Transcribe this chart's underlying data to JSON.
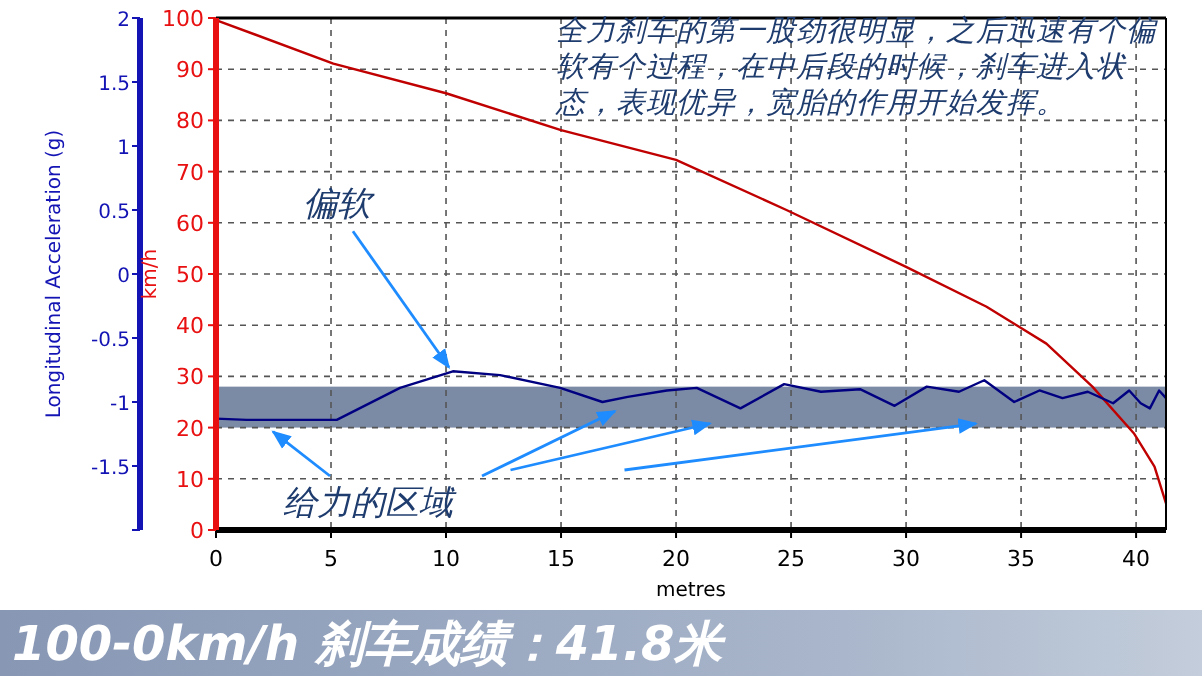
{
  "chart_data": {
    "type": "line",
    "title": "100-0km/h 刹车成绩：41.8米",
    "xlabel": "metres",
    "ylabel": "km/h",
    "y2label": "Longitudinal Acceleration (g)",
    "xlim": [
      0,
      41.3
    ],
    "xticks": [
      0,
      5,
      10,
      15,
      20,
      25,
      30,
      35,
      40
    ],
    "ylim": [
      0,
      100
    ],
    "yticks": [
      0,
      10,
      20,
      30,
      40,
      50,
      60,
      70,
      80,
      90,
      100
    ],
    "y2lim": [
      -2,
      2
    ],
    "y2ticks": [
      {
        "value": -2,
        "label": null
      },
      -1.5,
      -1,
      -0.5,
      0,
      0.5,
      1,
      1.5,
      2
    ],
    "grid": true,
    "series": [
      {
        "color": "#c00000",
        "x": [
          0,
          5.1,
          10.0,
          15.0,
          20.0,
          24.8,
          30.0,
          33.5,
          36.1,
          38.1,
          39.9,
          40.8,
          41.3
        ],
        "values": [
          99.6,
          91.1,
          85.3,
          78.1,
          72.3,
          62.5,
          51.4,
          43.6,
          36.4,
          28.0,
          18.9,
          12.4,
          5.2
        ]
      },
      {
        "color": "#000080",
        "axis": "y2",
        "x": [
          0,
          1.33,
          5.25,
          8.0,
          10.3,
          12.35,
          14.96,
          16.8,
          17.9,
          19.6,
          20.9,
          22.8,
          24.7,
          26.3,
          28.0,
          29.5,
          30.9,
          32.3,
          33.4,
          34.7,
          35.8,
          36.8,
          37.9,
          39.0,
          39.7,
          40.2,
          40.6,
          41.0,
          41.3
        ],
        "values": [
          -1.13,
          -1.14,
          -1.14,
          -0.89,
          -0.76,
          -0.79,
          -0.89,
          -1.0,
          -0.96,
          -0.91,
          -0.89,
          -1.05,
          -0.86,
          -0.92,
          -0.9,
          -1.03,
          -0.88,
          -0.92,
          -0.83,
          -1.0,
          -0.91,
          -0.97,
          -0.92,
          -1.01,
          -0.91,
          -1.01,
          -1.05,
          -0.91,
          -0.97
        ]
      }
    ],
    "bands": [
      {
        "axis": "y",
        "from": 20,
        "to": 28,
        "label": "给力的区域",
        "color": "#7b8ba6"
      }
    ],
    "annotations": [
      "全力刹车的第一股劲很明显，之后迅速有个偏软有个过程，在中后段的时候，刹车进入状态，表现优异，宽胎的作用开始发挥。",
      {
        "text": "偏软",
        "x": 10.3,
        "y": 31
      }
    ]
  }
}
